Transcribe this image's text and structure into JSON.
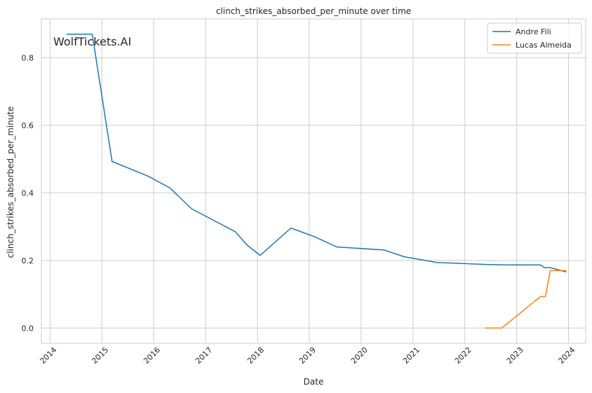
{
  "watermark": "WolfTickets.AI",
  "colors": {
    "series_0": "#1f77b4",
    "series_1": "#ff7f0e",
    "grid": "#cccccc",
    "frame": "#cccccc",
    "watermark": "#bdbdbd"
  },
  "chart_data": {
    "type": "line",
    "title": "clinch_strikes_absorbed_per_minute over time",
    "xlabel": "Date",
    "ylabel": "clinch_strikes_absorbed_per_minute",
    "x_is_date": true,
    "xlim": [
      "2013-11-01",
      "2024-05-01"
    ],
    "ylim": [
      -0.045,
      0.915
    ],
    "x_ticks": [
      "2014",
      "2015",
      "2016",
      "2017",
      "2018",
      "2019",
      "2020",
      "2021",
      "2022",
      "2023",
      "2024"
    ],
    "y_ticks": [
      "0.0",
      "0.2",
      "0.4",
      "0.6",
      "0.8"
    ],
    "grid": true,
    "legend_position": "top-right",
    "series": [
      {
        "name": "Andre Fili",
        "color": "#1f77b4",
        "points": [
          [
            "2014-04-26",
            0.87
          ],
          [
            "2014-10-25",
            0.87
          ],
          [
            "2015-03-14",
            0.493
          ],
          [
            "2015-11-21",
            0.45
          ],
          [
            "2016-04-23",
            0.415
          ],
          [
            "2016-09-24",
            0.353
          ],
          [
            "2017-07-29",
            0.285
          ],
          [
            "2017-10-21",
            0.245
          ],
          [
            "2018-01-20",
            0.215
          ],
          [
            "2018-08-25",
            0.296
          ],
          [
            "2019-02-09",
            0.27
          ],
          [
            "2019-07-13",
            0.24
          ],
          [
            "2020-06-13",
            0.231
          ],
          [
            "2020-10-31",
            0.211
          ],
          [
            "2021-06-19",
            0.194
          ],
          [
            "2022-06-11",
            0.188
          ],
          [
            "2022-10-15",
            0.187
          ],
          [
            "2023-06-17",
            0.187
          ],
          [
            "2023-07-15",
            0.179
          ],
          [
            "2023-08-26",
            0.179
          ],
          [
            "2023-12-16",
            0.166
          ]
        ]
      },
      {
        "name": "Lucas Almeida",
        "color": "#ff7f0e",
        "points": [
          [
            "2022-05-21",
            0.0
          ],
          [
            "2022-09-17",
            0.0
          ],
          [
            "2023-06-17",
            0.093
          ],
          [
            "2023-07-22",
            0.093
          ],
          [
            "2023-08-26",
            0.17
          ],
          [
            "2023-12-16",
            0.17
          ]
        ]
      }
    ]
  }
}
